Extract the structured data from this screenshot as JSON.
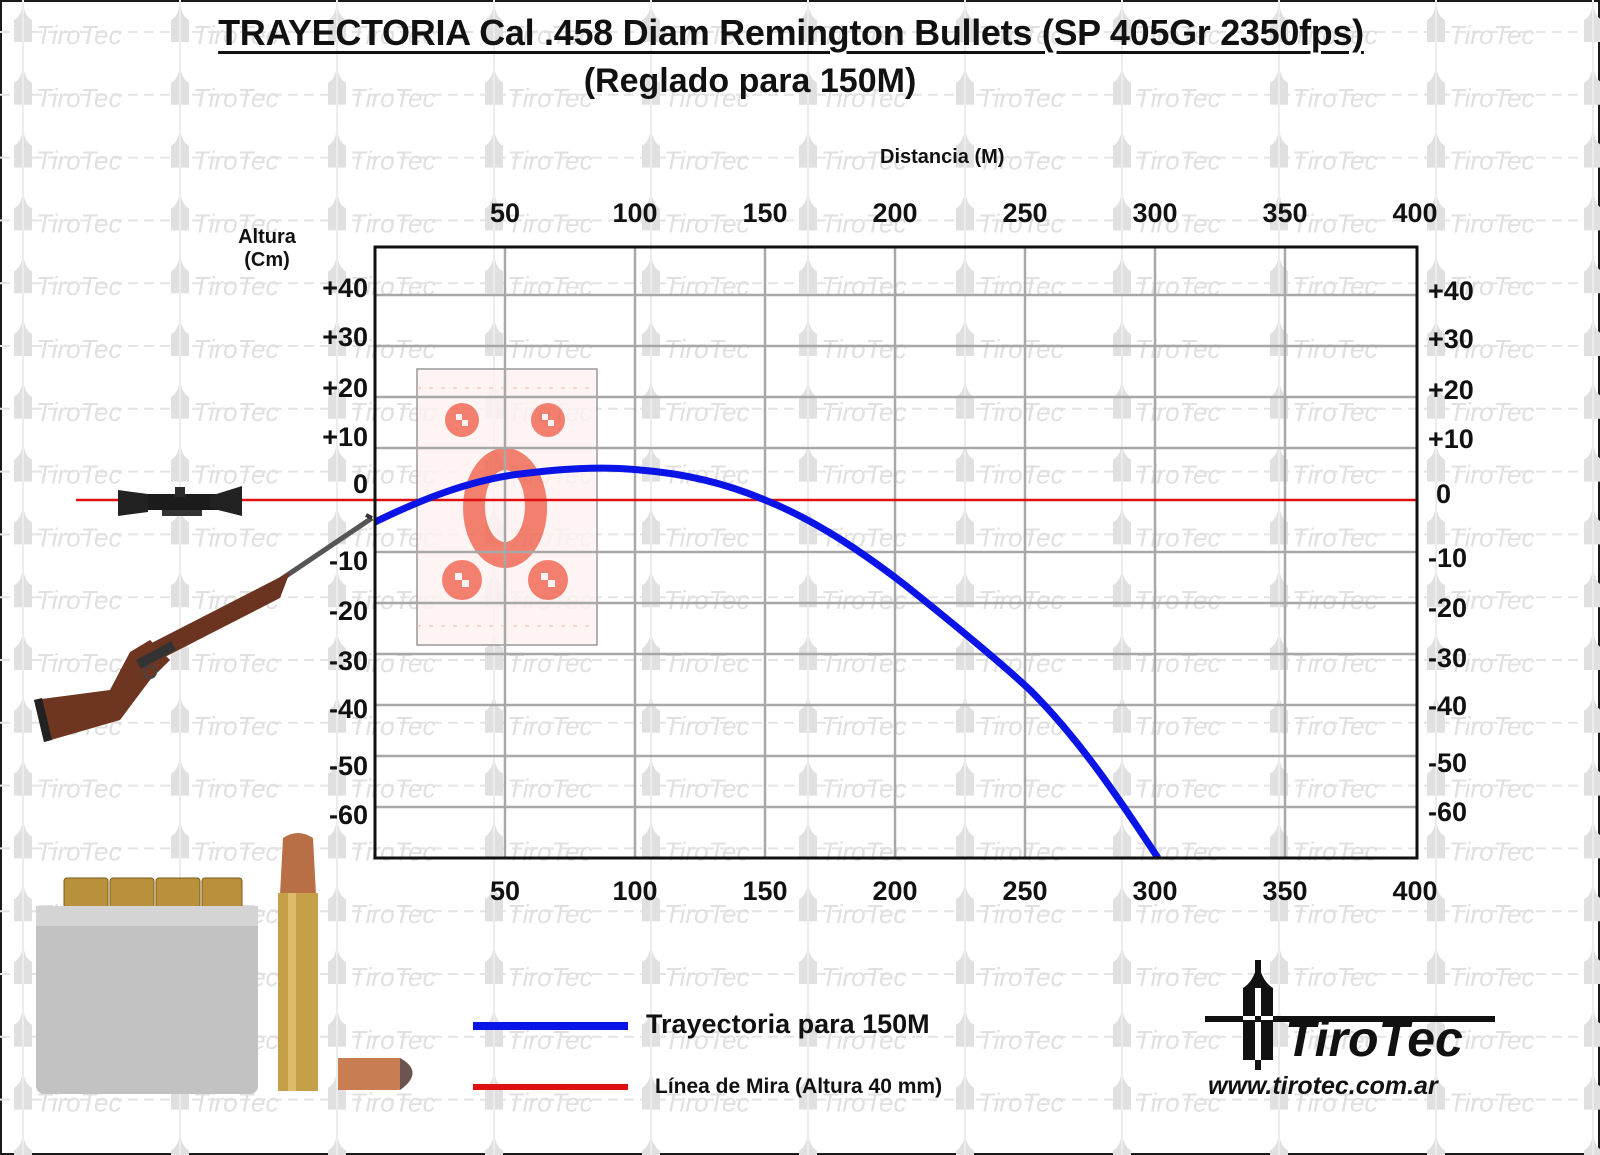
{
  "header": {
    "title": "TRAYECTORIA Cal .458 Diam Remington Bullets (SP 405Gr 2350fps)",
    "subtitle": "(Reglado para 150M)"
  },
  "axes": {
    "x_title": "Distancia (M)",
    "y_title_line1": "Altura",
    "y_title_line2": "(Cm)",
    "x_ticks": [
      "50",
      "100",
      "150",
      "200",
      "250",
      "300",
      "350",
      "400"
    ],
    "y_ticks": [
      "+40",
      "+30",
      "+20",
      "+10",
      "0",
      "-10",
      "-20",
      "-30",
      "-40",
      "-50",
      "-60"
    ]
  },
  "legend": {
    "trajectory_label": "Trayectoria para 150M",
    "sightline_label": "Línea de Mira (Altura  40 mm)"
  },
  "branding": {
    "logo_name": "TiroTec",
    "website": "www.tirotec.com.ar",
    "watermark": "TiroTec"
  },
  "colors": {
    "trajectory": "#0a14e6",
    "sight_line": "#e01010",
    "grid": "#a8a8a8",
    "frame": "#111111"
  },
  "chart_data": {
    "type": "line",
    "title": "TRAYECTORIA Cal .458 Diam Remington Bullets (SP 405Gr 2350fps)",
    "subtitle": "(Reglado para 150M)",
    "xlabel": "Distancia (M)",
    "ylabel": "Altura (Cm)",
    "xlim": [
      0,
      400
    ],
    "ylim": [
      -70,
      50
    ],
    "x_ticks": [
      50,
      100,
      150,
      200,
      250,
      300,
      350,
      400
    ],
    "y_ticks": [
      40,
      30,
      20,
      10,
      0,
      -10,
      -20,
      -30,
      -40,
      -50,
      -60
    ],
    "grid": true,
    "legend_position": "bottom",
    "series": [
      {
        "name": "Trayectoria para 150M",
        "color": "#0a14e6",
        "x": [
          0,
          25,
          50,
          85,
          100,
          150,
          200,
          250,
          300
        ],
        "values": [
          -4,
          1,
          4,
          6,
          5.5,
          0,
          -16,
          -36,
          -69
        ]
      },
      {
        "name": "Línea de Mira (Altura 40 mm)",
        "color": "#e01010",
        "x": [
          0,
          400
        ],
        "values": [
          0,
          0
        ]
      }
    ],
    "annotations": [
      "Reglado para 150M",
      "Altura línea de mira 40 mm"
    ]
  }
}
